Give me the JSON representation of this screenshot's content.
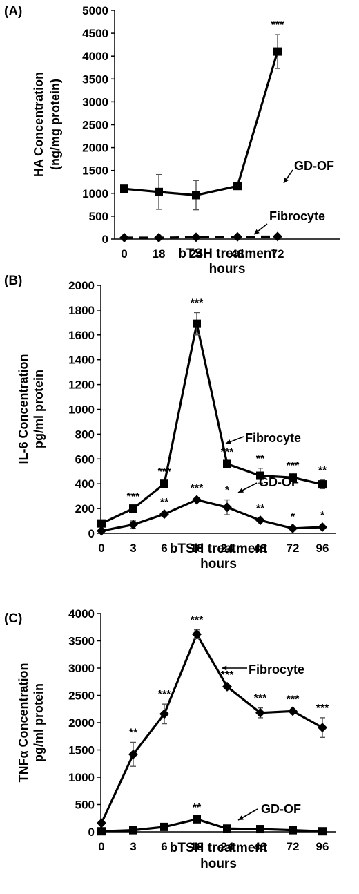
{
  "chart_data": [
    {
      "panel_label": "(A)",
      "type": "line",
      "categories": [
        "0",
        "18",
        "24",
        "48",
        "72"
      ],
      "ylabel_lines": [
        "HA Concentration",
        "(ng/mg protein)"
      ],
      "xlabel_lines": [
        "bTSH treatment",
        "hours"
      ],
      "ylim": [
        0,
        5000
      ],
      "yticks": [
        0,
        500,
        1000,
        1500,
        2000,
        2500,
        3000,
        3500,
        4000,
        4500,
        5000
      ],
      "grid": false,
      "series": [
        {
          "name": "GD-OF",
          "marker": "square",
          "line": "solid",
          "values": [
            1100,
            1030,
            960,
            1160,
            4100
          ],
          "errors": [
            0,
            380,
            320,
            0,
            370
          ],
          "significance": [
            "",
            "",
            "",
            "",
            "***"
          ]
        },
        {
          "name": "Fibrocyte",
          "marker": "diamond",
          "line": "dashed",
          "values": [
            30,
            30,
            40,
            50,
            55
          ],
          "errors": [
            0,
            0,
            0,
            0,
            0
          ],
          "significance": [
            "",
            "",
            "",
            "",
            ""
          ]
        }
      ]
    },
    {
      "panel_label": "(B)",
      "type": "line",
      "categories": [
        "0",
        "3",
        "6",
        "18",
        "24",
        "48",
        "72",
        "96"
      ],
      "ylabel_lines": [
        "IL-6 Concentration",
        "pg/ml protein"
      ],
      "xlabel_lines": [
        "bTSH treatment",
        "hours"
      ],
      "ylim": [
        0,
        2000
      ],
      "yticks": [
        0,
        200,
        400,
        600,
        800,
        1000,
        1200,
        1400,
        1600,
        1800,
        2000
      ],
      "grid": false,
      "series": [
        {
          "name": "Fibrocyte",
          "marker": "square",
          "line": "solid",
          "values": [
            80,
            200,
            400,
            1690,
            560,
            465,
            450,
            395
          ],
          "errors": [
            0,
            0,
            0,
            90,
            0,
            60,
            0,
            35
          ],
          "significance": [
            "",
            "***",
            "***",
            "***",
            "***",
            "**",
            "***",
            "**"
          ]
        },
        {
          "name": "GD-OF",
          "marker": "diamond",
          "line": "solid",
          "values": [
            20,
            70,
            155,
            270,
            210,
            105,
            40,
            50
          ],
          "errors": [
            0,
            30,
            0,
            0,
            60,
            0,
            0,
            0
          ],
          "significance": [
            "",
            "*",
            "**",
            "***",
            "*",
            "**",
            "*",
            "*"
          ]
        }
      ]
    },
    {
      "panel_label": "(C)",
      "type": "line",
      "categories": [
        "0",
        "3",
        "6",
        "18",
        "24",
        "48",
        "72",
        "96"
      ],
      "ylabel_lines": [
        "TNFα Concentration",
        "pg/ml protein"
      ],
      "xlabel_lines": [
        "bTSH treatment",
        "hours"
      ],
      "ylim": [
        0,
        4000
      ],
      "yticks": [
        0,
        500,
        1000,
        1500,
        2000,
        2500,
        3000,
        3500,
        4000
      ],
      "grid": false,
      "series": [
        {
          "name": "Fibrocyte",
          "marker": "diamond",
          "line": "solid",
          "values": [
            160,
            1420,
            2160,
            3620,
            2660,
            2180,
            2210,
            1910
          ],
          "errors": [
            0,
            220,
            180,
            80,
            0,
            90,
            0,
            180
          ],
          "significance": [
            "",
            "**",
            "***",
            "***",
            "***",
            "***",
            "***",
            "***"
          ]
        },
        {
          "name": "GD-OF",
          "marker": "square",
          "line": "solid",
          "values": [
            10,
            30,
            90,
            230,
            60,
            50,
            30,
            10
          ],
          "errors": [
            0,
            0,
            0,
            30,
            0,
            0,
            0,
            0
          ],
          "significance": [
            "",
            "",
            "",
            "**",
            "",
            "",
            "",
            ""
          ]
        }
      ]
    }
  ]
}
